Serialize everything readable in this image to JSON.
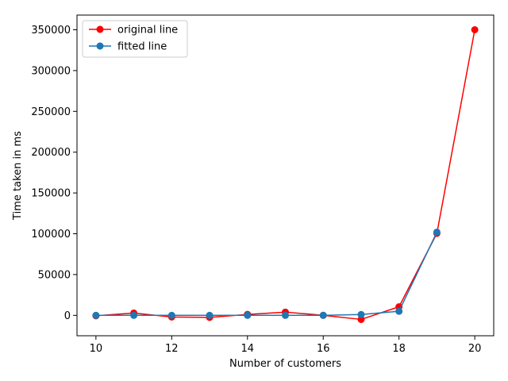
{
  "chart_data": {
    "type": "line",
    "title": "",
    "xlabel": "Number of customers",
    "ylabel": "Time taken in ms",
    "xlim": [
      9.5,
      20.5
    ],
    "ylim": [
      -25000,
      368000
    ],
    "xticks": [
      10,
      12,
      14,
      16,
      18,
      20
    ],
    "xtick_labels": [
      "10",
      "12",
      "14",
      "16",
      "18",
      "20"
    ],
    "yticks": [
      0,
      50000,
      100000,
      150000,
      200000,
      250000,
      300000,
      350000
    ],
    "ytick_labels": [
      "0",
      "50000",
      "100000",
      "150000",
      "200000",
      "250000",
      "300000",
      "350000"
    ],
    "grid": false,
    "legend_position": "upper-left",
    "series": [
      {
        "name": "original line",
        "color": "#ff0000",
        "marker": "circle",
        "x": [
          10,
          11,
          12,
          13,
          14,
          15,
          16,
          17,
          18,
          19,
          20
        ],
        "y": [
          -500,
          2800,
          -2000,
          -2500,
          1200,
          4000,
          0,
          -5000,
          10500,
          100500,
          350000
        ]
      },
      {
        "name": "fitted line",
        "color": "#1f77b4",
        "marker": "circle",
        "x": [
          10,
          11,
          12,
          13,
          14,
          15,
          16,
          17,
          18,
          19
        ],
        "y": [
          0,
          0,
          0,
          0,
          0,
          0,
          0,
          1000,
          5000,
          102000
        ]
      }
    ]
  }
}
